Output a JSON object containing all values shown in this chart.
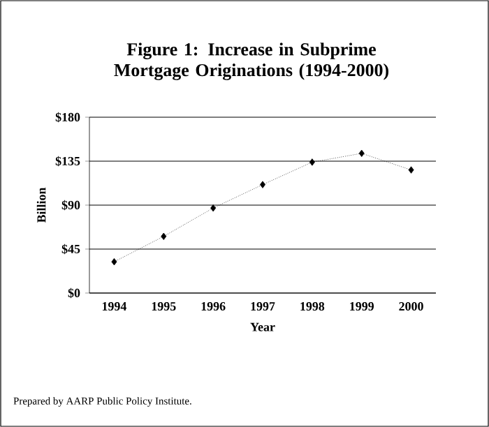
{
  "chart_data": {
    "type": "line",
    "title": "Figure 1:  Increase in Subprime Mortgage Originations (1994-2000)",
    "categories": [
      "1994",
      "1995",
      "1996",
      "1997",
      "1998",
      "1999",
      "2000"
    ],
    "values": [
      32,
      58,
      87,
      111,
      134,
      143,
      126
    ],
    "color": "#000000",
    "marker": "diamond",
    "line_style": "dotted",
    "ylim": [
      0,
      180
    ],
    "yticks": [
      {
        "value": 0,
        "label": "$0"
      },
      {
        "value": 45,
        "label": "$45"
      },
      {
        "value": 90,
        "label": "$90"
      },
      {
        "value": 135,
        "label": "$135"
      },
      {
        "value": 180,
        "label": "$180"
      }
    ],
    "grid": "y",
    "ylabel": "Billion",
    "xlabel": "Year",
    "annotations": [
      "Prepared by AARP Public Policy Institute."
    ]
  }
}
